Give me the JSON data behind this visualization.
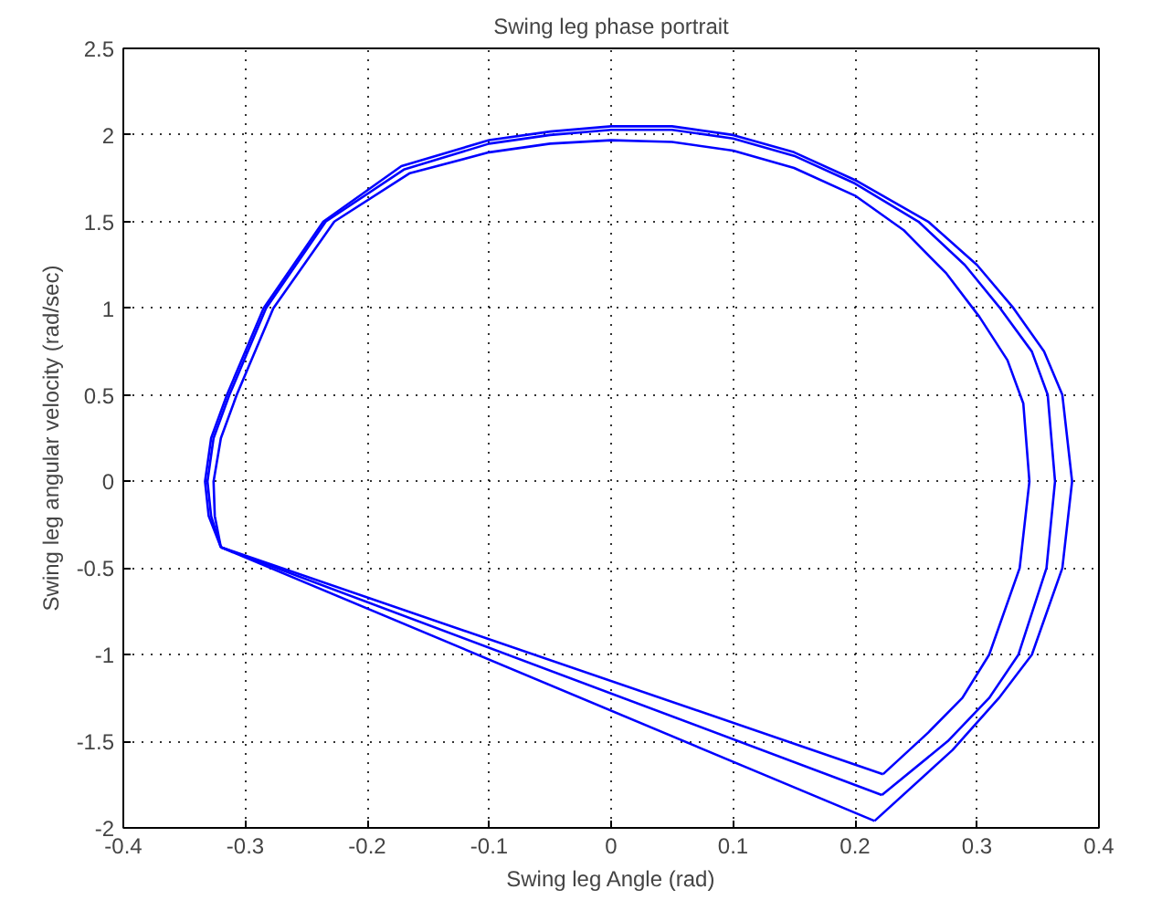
{
  "chart_data": {
    "type": "line",
    "title": "Swing leg phase portrait",
    "xlabel": "Swing leg Angle (rad)",
    "ylabel": "Swing leg angular velocity (rad/sec)",
    "xlim": [
      -0.4,
      0.4
    ],
    "ylim": [
      -2,
      2.5
    ],
    "xticks": [
      -0.4,
      -0.3,
      -0.2,
      -0.1,
      0,
      0.1,
      0.2,
      0.3,
      0.4
    ],
    "yticks": [
      -2,
      -1.5,
      -1,
      -0.5,
      0,
      0.5,
      1,
      1.5,
      2,
      2.5
    ],
    "grid": true,
    "line_style": "solid",
    "series": [
      {
        "color": "#0000ff",
        "x": [
          -0.32,
          -0.33,
          -0.333,
          -0.328,
          -0.315,
          -0.285,
          -0.236,
          -0.172,
          -0.1,
          -0.05,
          0,
          0.05,
          0.1,
          0.15,
          0.2,
          0.26,
          0.3,
          0.33,
          0.355,
          0.37,
          0.378,
          0.37,
          0.345,
          0.318,
          0.28,
          0.216
        ],
        "values": [
          -0.38,
          -0.2,
          0,
          0.25,
          0.5,
          1,
          1.5,
          1.82,
          1.97,
          2.02,
          2.05,
          2.05,
          2.0,
          1.9,
          1.74,
          1.5,
          1.25,
          1.0,
          0.75,
          0.5,
          0,
          -0.5,
          -1,
          -1.25,
          -1.55,
          -1.96
        ]
      },
      {
        "color": "#0000ff",
        "x": [
          0.216,
          -0.32
        ],
        "values": [
          -1.96,
          -0.38
        ]
      },
      {
        "color": "#0000ff",
        "x": [
          -0.32,
          -0.328,
          -0.331,
          -0.326,
          -0.313,
          -0.283,
          -0.234,
          -0.17,
          -0.1,
          -0.05,
          0,
          0.05,
          0.1,
          0.15,
          0.2,
          0.252,
          0.29,
          0.319,
          0.345,
          0.358,
          0.364,
          0.357,
          0.334,
          0.31,
          0.276,
          0.222
        ],
        "values": [
          -0.38,
          -0.2,
          0,
          0.25,
          0.5,
          1,
          1.5,
          1.8,
          1.95,
          2.0,
          2.03,
          2.03,
          1.98,
          1.88,
          1.72,
          1.5,
          1.25,
          1.0,
          0.75,
          0.5,
          0,
          -0.5,
          -1,
          -1.25,
          -1.5,
          -1.81
        ]
      },
      {
        "color": "#0000ff",
        "x": [
          0.222,
          -0.32
        ],
        "values": [
          -1.81,
          -0.38
        ]
      },
      {
        "color": "#0000ff",
        "x": [
          -0.32,
          -0.325,
          -0.326,
          -0.32,
          -0.307,
          -0.277,
          -0.227,
          -0.165,
          -0.1,
          -0.05,
          0,
          0.05,
          0.1,
          0.15,
          0.2,
          0.24,
          0.275,
          0.302,
          0.325,
          0.338,
          0.343,
          0.335,
          0.31,
          0.288,
          0.26,
          0.223
        ],
        "values": [
          -0.38,
          -0.2,
          0,
          0.25,
          0.5,
          1,
          1.5,
          1.78,
          1.9,
          1.95,
          1.97,
          1.96,
          1.91,
          1.81,
          1.65,
          1.45,
          1.2,
          0.95,
          0.7,
          0.45,
          0,
          -0.5,
          -1,
          -1.25,
          -1.45,
          -1.69
        ]
      },
      {
        "color": "#0000ff",
        "x": [
          0.223,
          -0.32
        ],
        "values": [
          -1.69,
          -0.38
        ]
      }
    ]
  }
}
